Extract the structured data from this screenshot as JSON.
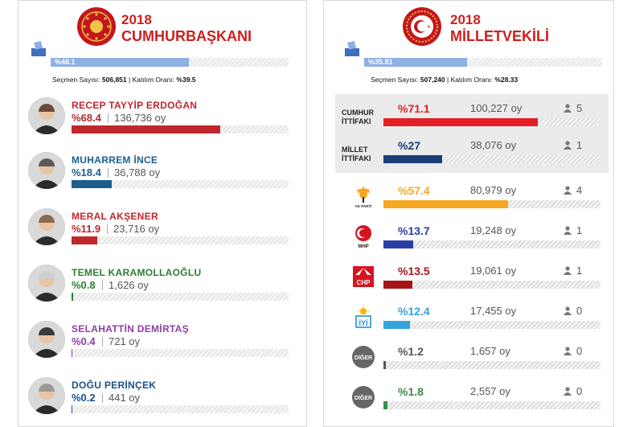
{
  "presidential": {
    "year": "2018",
    "title": "CUMHURBAŞKANI",
    "participation_bar": {
      "label": "%48.1",
      "value": 48.1
    },
    "stats": {
      "voters_label": "Seçmen Sayısı:",
      "voters": "506,851",
      "sep": "|",
      "turnout_label": "Katılım Oranı:",
      "turnout": "%39.5"
    },
    "candidates": [
      {
        "name": "RECEP TAYYİP ERDOĞAN",
        "pct": "%68.4",
        "value": 68.4,
        "votes": "136,736 oy",
        "color": "#c0272d"
      },
      {
        "name": "MUHARREM İNCE",
        "pct": "%18.4",
        "value": 18.4,
        "votes": "36,788 oy",
        "color": "#1b5e8c"
      },
      {
        "name": "MERAL AKŞENER",
        "pct": "%11.9",
        "value": 11.9,
        "votes": "23,716 oy",
        "color": "#c0272d"
      },
      {
        "name": "TEMEL KARAMOLLAOĞLU",
        "pct": "%0.8",
        "value": 0.8,
        "votes": "1,626 oy",
        "color": "#2e7d32"
      },
      {
        "name": "SELAHATTİN DEMİRTAŞ",
        "pct": "%0.4",
        "value": 0.4,
        "votes": "721 oy",
        "color": "#8e3fa3"
      },
      {
        "name": "DOĞU PERİNÇEK",
        "pct": "%0.2",
        "value": 0.2,
        "votes": "441 oy",
        "color": "#1b4f8a"
      }
    ]
  },
  "parliament": {
    "year": "2018",
    "title": "MİLLETVEKİLİ",
    "participation_bar": {
      "label": "%35.81",
      "value": 35.81
    },
    "stats": {
      "voters_label": "Seçmen Sayısı:",
      "voters": "507,240",
      "sep": "|",
      "turnout_label": "Katılım Oranı:",
      "turnout": "%28.33"
    },
    "alliances": [
      {
        "label_line1": "CUMHUR",
        "label_line2": "İTTİFAKI",
        "pct": "%71.1",
        "value": 71.1,
        "votes": "100,227 oy",
        "seats": "5",
        "color": "#e31e24"
      },
      {
        "label_line1": "MİLLET",
        "label_line2": "İTTİFAKI",
        "pct": "%27",
        "value": 27,
        "votes": "38,076 oy",
        "seats": "1",
        "color": "#1d3f78"
      }
    ],
    "parties": [
      {
        "logo": "akparti-logo",
        "logo_text": "AK PARTİ",
        "pct": "%57.4",
        "value": 57.4,
        "votes": "80,979 oy",
        "seats": "4",
        "color": "#f6a823"
      },
      {
        "logo": "mhp-logo",
        "logo_text": "MHP",
        "pct": "%13.7",
        "value": 13.7,
        "votes": "19,248 oy",
        "seats": "1",
        "color": "#2a3ea8"
      },
      {
        "logo": "chp-logo",
        "logo_text": "CHP",
        "pct": "%13.5",
        "value": 13.5,
        "votes": "19,061 oy",
        "seats": "1",
        "color": "#a6141a"
      },
      {
        "logo": "iyi-logo",
        "logo_text": "İYİ",
        "pct": "%12.4",
        "value": 12.4,
        "votes": "17,455 oy",
        "seats": "0",
        "color": "#34a4d8"
      },
      {
        "logo": "diger-logo",
        "logo_text": "DİĞER",
        "pct": "%1.2",
        "value": 1.2,
        "votes": "1,657 oy",
        "seats": "0",
        "color": "#555555"
      },
      {
        "logo": "diger-logo",
        "logo_text": "DİĞER",
        "pct": "%1.8",
        "value": 1.8,
        "votes": "2,557 oy",
        "seats": "0",
        "color": "#3d8a4a"
      }
    ]
  }
}
